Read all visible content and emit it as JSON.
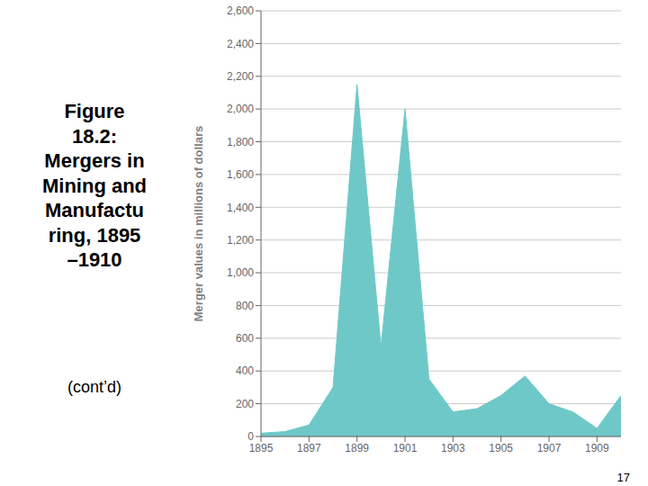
{
  "chart_data": {
    "type": "area",
    "title": "Figure\n18.2:\nMergers in\nMining and\nManufactu\nring, 1895\n–1910",
    "subtitle": "(cont’d)",
    "annotations": [
      "17"
    ],
    "ylabel": "Merger values in millions of dollars",
    "x": [
      1895,
      1896,
      1897,
      1898,
      1899,
      1900,
      1901,
      1902,
      1903,
      1904,
      1905,
      1906,
      1907,
      1908,
      1909,
      1910
    ],
    "values": [
      20,
      30,
      70,
      300,
      2150,
      550,
      2000,
      350,
      150,
      170,
      250,
      370,
      200,
      150,
      50,
      250
    ],
    "color": "#6fc8c8",
    "xlim": [
      1895,
      1910
    ],
    "xticks": [
      1895,
      1897,
      1899,
      1901,
      1903,
      1905,
      1907,
      1909
    ],
    "ylim": [
      0,
      2600
    ],
    "yticks": [
      0,
      200,
      400,
      600,
      800,
      {
        "value": 1000,
        "label": "1,000"
      },
      {
        "value": 1200,
        "label": "1,200"
      },
      {
        "value": 1400,
        "label": "1,400"
      },
      {
        "value": 1600,
        "label": "1,600"
      },
      {
        "value": 1800,
        "label": "1,800"
      },
      {
        "value": 2000,
        "label": "2,000"
      },
      {
        "value": 2200,
        "label": "2,200"
      },
      {
        "value": 2400,
        "label": "2,400"
      },
      {
        "value": 2600,
        "label": "2,600"
      }
    ],
    "grid": true
  }
}
